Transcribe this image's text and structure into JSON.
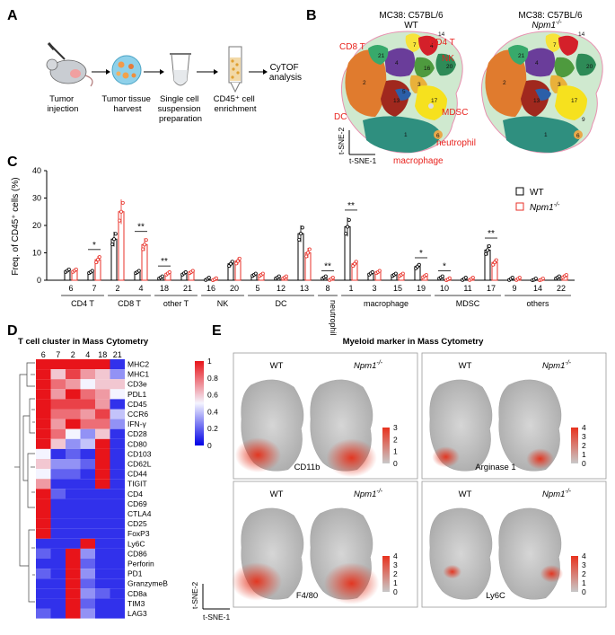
{
  "panels": {
    "A": "A",
    "B": "B",
    "C": "C",
    "D": "D",
    "E": "E"
  },
  "workflow": {
    "steps": [
      "Tumor injection",
      "Tumor tissue harvest",
      "Single cell suspension preparation",
      "CD45⁺ cell enrichment"
    ],
    "step_lines": [
      [
        "Tumor",
        "injection"
      ],
      [
        "Tumor tissue",
        "harvest"
      ],
      [
        "Single cell",
        "suspension",
        "preparation"
      ],
      [
        "CD45⁺ cell",
        "enrichment"
      ]
    ],
    "final": [
      "CyTOF",
      "analysis"
    ]
  },
  "tsne": {
    "wt_title_1": "MC38: C57BL/6",
    "wt_title_2": "WT",
    "ko_title_1": "MC38: C57BL/6",
    "ko_title_2": "Npm1",
    "ko_sup": "-/-",
    "axis_y": "t-SNE-2",
    "axis_x": "t-SNE-1",
    "labels": [
      "CD4 T",
      "CD8 T",
      "NK",
      "DC",
      "MDSC",
      "neutrophil",
      "macrophage"
    ],
    "clusters": [
      "1",
      "2",
      "3",
      "4",
      "5",
      "6",
      "7",
      "8",
      "9",
      "10",
      "11",
      "12",
      "13",
      "14",
      "15",
      "16",
      "17",
      "18",
      "19",
      "20",
      "21",
      "22"
    ]
  },
  "bar_chart": {
    "ylabel": "Freq. of CD45⁺ cells (%)",
    "yticks": [
      "0",
      "10",
      "20",
      "30",
      "40"
    ],
    "legend": {
      "wt": "WT",
      "ko": "Npm1",
      "ko_sup": "-/-"
    },
    "sig": [
      "*",
      "**",
      "**",
      "**",
      "**",
      "*",
      "*",
      "**"
    ]
  },
  "chart_data": {
    "type": "bar",
    "title": "",
    "ylabel": "Freq. of CD45+ cells (%)",
    "ylim": [
      0,
      40
    ],
    "categories": [
      "6",
      "7",
      "2",
      "4",
      "18",
      "21",
      "16",
      "20",
      "5",
      "12",
      "13",
      "8",
      "1",
      "3",
      "15",
      "19",
      "10",
      "11",
      "17",
      "9",
      "14",
      "22"
    ],
    "groups": [
      {
        "name": "CD4 T",
        "clusters": [
          "6",
          "7"
        ]
      },
      {
        "name": "CD8 T",
        "clusters": [
          "2",
          "4"
        ]
      },
      {
        "name": "other T",
        "clusters": [
          "18",
          "21"
        ]
      },
      {
        "name": "NK",
        "clusters": [
          "16",
          "20"
        ]
      },
      {
        "name": "DC",
        "clusters": [
          "5",
          "12",
          "13"
        ]
      },
      {
        "name": "neutrophil",
        "clusters": [
          "8"
        ]
      },
      {
        "name": "macrophage",
        "clusters": [
          "1",
          "3",
          "15",
          "19"
        ]
      },
      {
        "name": "MDSC",
        "clusters": [
          "10",
          "11",
          "17"
        ]
      },
      {
        "name": "others",
        "clusters": [
          "9",
          "14",
          "22"
        ]
      }
    ],
    "series": [
      {
        "name": "WT",
        "color": "#000000",
        "values": [
          3.5,
          3,
          15,
          3,
          1,
          2.5,
          0.5,
          6,
          2,
          1,
          17,
          1,
          19.5,
          2.5,
          2,
          5,
          1,
          0.5,
          11,
          0.5,
          0.2,
          1
        ]
      },
      {
        "name": "Npm1-/-",
        "color": "#e8322a",
        "values": [
          3.5,
          7.5,
          25,
          13,
          2.5,
          3,
          0.3,
          7,
          2,
          1,
          10,
          0.5,
          6,
          3,
          2,
          1.5,
          0.3,
          0.5,
          6.5,
          0.5,
          0.2,
          1.5
        ]
      }
    ],
    "significance": [
      {
        "pair": "7",
        "label": "*"
      },
      {
        "pair": "4",
        "label": "**"
      },
      {
        "pair": "18",
        "label": "**"
      },
      {
        "pair": "8",
        "label": "**"
      },
      {
        "pair": "1",
        "label": "**"
      },
      {
        "pair": "19",
        "label": "*"
      },
      {
        "pair": "10",
        "label": "*"
      },
      {
        "pair": "17",
        "label": "**"
      }
    ]
  },
  "heatmap": {
    "title": "T cell cluster in Mass Cytometry",
    "columns": [
      "6",
      "7",
      "2",
      "4",
      "18",
      "21"
    ],
    "rows": [
      "MHC2",
      "MHC1",
      "CD3e",
      "PDL1",
      "CD45",
      "CCR6",
      "IFN-γ",
      "CD28",
      "CD80",
      "CD103",
      "CD62L",
      "CD44",
      "TIGIT",
      "CD4",
      "CD69",
      "CTLA4",
      "CD25",
      "FoxP3",
      "Ly6C",
      "CD86",
      "Perforin",
      "PD1",
      "GranzymeB",
      "CD8a",
      "TIM3",
      "LAG3"
    ],
    "values": [
      [
        1,
        1,
        1,
        1,
        1,
        0.1
      ],
      [
        1,
        0.6,
        0.9,
        0.7,
        0.6,
        0.3
      ],
      [
        1,
        0.8,
        0.7,
        0.5,
        0.6,
        0.6
      ],
      [
        1,
        0.7,
        1,
        0.8,
        0.7,
        0.5
      ],
      [
        1,
        0.9,
        0.9,
        0.9,
        0.7,
        0.1
      ],
      [
        1,
        0.8,
        0.8,
        0.7,
        0.9,
        0.4
      ],
      [
        1,
        0.7,
        1,
        0.8,
        0.8,
        0.3
      ],
      [
        1,
        0.8,
        0.5,
        0.3,
        0.6,
        0.1
      ],
      [
        1,
        0.6,
        0.3,
        0.4,
        1,
        0.1
      ],
      [
        0.5,
        0.1,
        0.2,
        0.1,
        1,
        0.1
      ],
      [
        0.6,
        0.3,
        0.3,
        0.2,
        1,
        0.1
      ],
      [
        0.5,
        0.2,
        0.2,
        0.1,
        1,
        0.1
      ],
      [
        0.7,
        0.1,
        0.1,
        0.1,
        1,
        0.1
      ],
      [
        1,
        0.2,
        0.1,
        0.1,
        0.1,
        0.1
      ],
      [
        1,
        0.1,
        0.1,
        0.1,
        0.1,
        0.1
      ],
      [
        1,
        0.1,
        0.1,
        0.1,
        0.1,
        0.1
      ],
      [
        1,
        0.1,
        0.1,
        0.1,
        0.1,
        0.1
      ],
      [
        1,
        0.1,
        0.1,
        0.1,
        0.1,
        0.1
      ],
      [
        0.1,
        0.1,
        0.1,
        1,
        0.1,
        0.1
      ],
      [
        0.2,
        0.1,
        1,
        0.3,
        0.1,
        0.1
      ],
      [
        0.1,
        0.1,
        1,
        0.2,
        0.1,
        0.1
      ],
      [
        0.2,
        0.1,
        1,
        0.3,
        0.1,
        0.1
      ],
      [
        0.1,
        0.1,
        1,
        0.2,
        0.1,
        0.1
      ],
      [
        0.1,
        0.1,
        1,
        0.3,
        0.2,
        0.1
      ],
      [
        0.1,
        0.1,
        1,
        0.2,
        0.1,
        0.1
      ],
      [
        0.2,
        0.1,
        1,
        0.3,
        0.1,
        0.1
      ]
    ],
    "scale_ticks": [
      "1",
      "0.8",
      "0.6",
      "0.4",
      "0.2",
      "0"
    ]
  },
  "myeloid": {
    "title": "Myeloid marker in Mass Cytometry",
    "wt": "WT",
    "ko": "Npm1",
    "ko_sup": "-/-",
    "axis_y": "t-SNE-2",
    "axis_x": "t-SNE-1",
    "panels": [
      {
        "marker": "CD11b",
        "ticks": [
          "3",
          "2",
          "1",
          "0"
        ]
      },
      {
        "marker": "Arginase 1",
        "ticks": [
          "4",
          "3",
          "2",
          "1",
          "0"
        ]
      },
      {
        "marker": "F4/80",
        "ticks": [
          "4",
          "3",
          "2",
          "1",
          "0"
        ]
      },
      {
        "marker": "Ly6C",
        "ticks": [
          "4",
          "3",
          "2",
          "1",
          "0"
        ]
      }
    ]
  }
}
